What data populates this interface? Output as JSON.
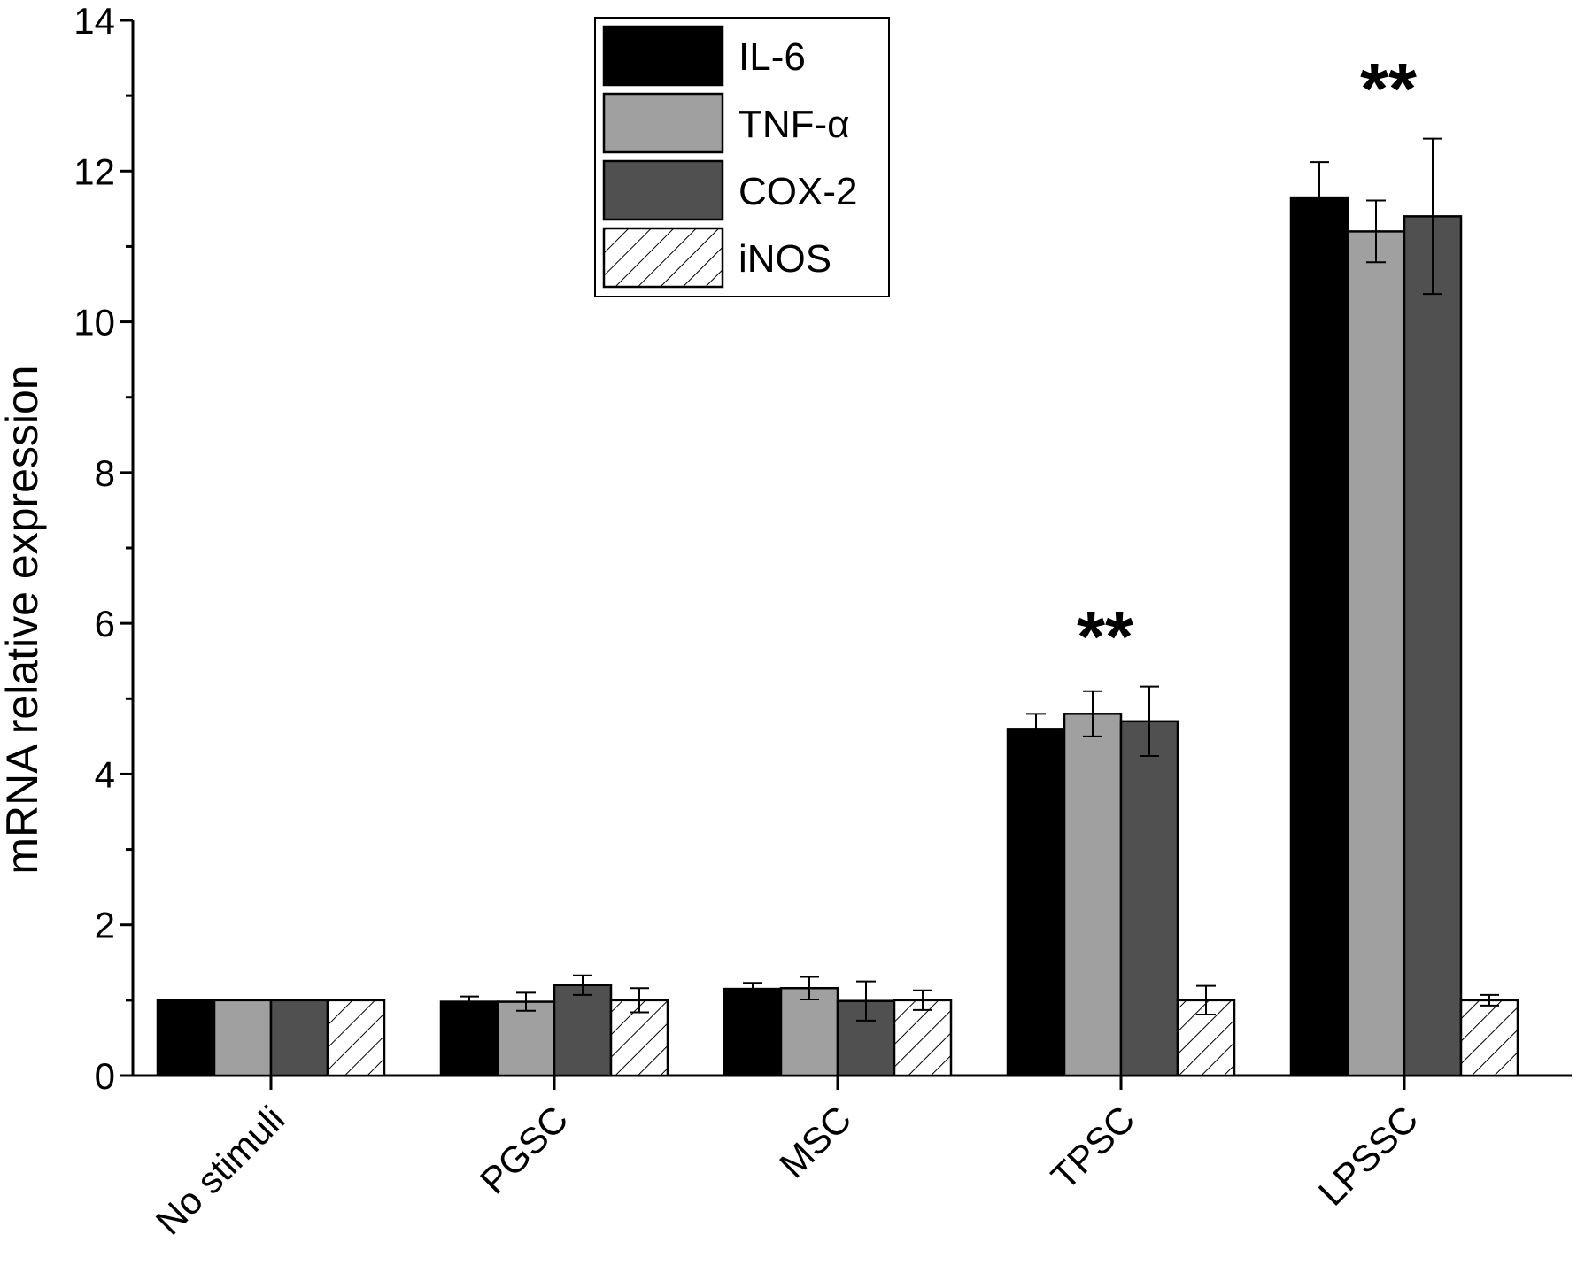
{
  "chart_data": {
    "type": "bar",
    "title": "",
    "xlabel": "",
    "ylabel": "mRNA relative expression",
    "ylim": [
      0,
      14
    ],
    "yticks": [
      0,
      2,
      4,
      6,
      8,
      10,
      12,
      14
    ],
    "categories": [
      "No stimuli",
      "PGSC",
      "MSC",
      "TPSC",
      "LPSSC"
    ],
    "legend_position": "top-center",
    "series": [
      {
        "name": "IL-6",
        "color": "#000000",
        "pattern": "solid",
        "values": [
          1.0,
          0.98,
          1.15,
          4.6,
          11.65
        ],
        "errors": [
          0.0,
          0.07,
          0.08,
          0.2,
          0.47
        ]
      },
      {
        "name": "TNF-α",
        "color": "#a0a0a0",
        "pattern": "solid",
        "values": [
          1.0,
          0.98,
          1.16,
          4.8,
          11.2
        ],
        "errors": [
          0.0,
          0.12,
          0.15,
          0.3,
          0.41
        ]
      },
      {
        "name": "COX-2",
        "color": "#505050",
        "pattern": "solid",
        "values": [
          1.0,
          1.2,
          0.99,
          4.7,
          11.4
        ],
        "errors": [
          0.0,
          0.13,
          0.26,
          0.46,
          1.03
        ]
      },
      {
        "name": "iNOS",
        "color": "#ffffff",
        "pattern": "hatched",
        "values": [
          1.0,
          1.0,
          1.0,
          1.0,
          1.0
        ],
        "errors": [
          0.0,
          0.16,
          0.13,
          0.19,
          0.07
        ]
      }
    ],
    "annotations": [
      {
        "category": "TPSC",
        "text": "**"
      },
      {
        "category": "LPSSC",
        "text": "**"
      }
    ]
  }
}
